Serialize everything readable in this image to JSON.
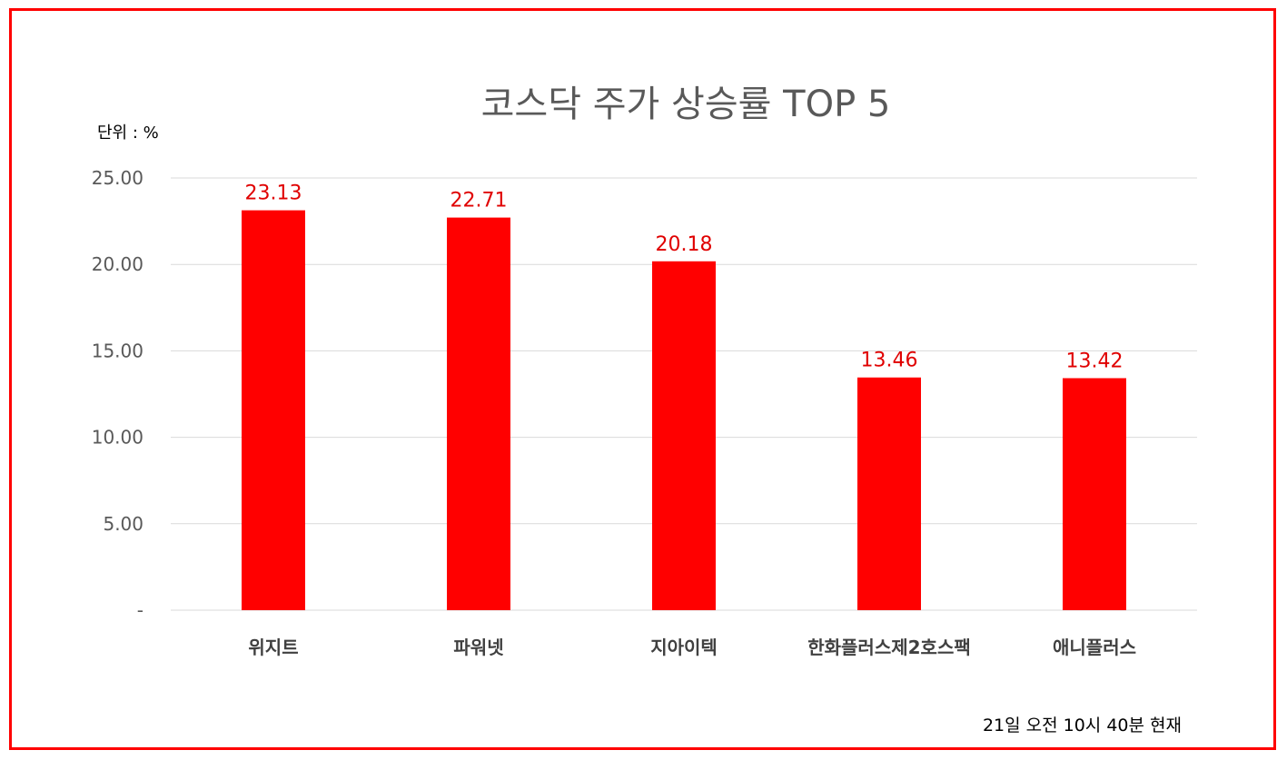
{
  "header": {
    "unit": "단위 : %"
  },
  "footer": {
    "timestamp": "21일  오전 10시 40분 현재"
  },
  "colors": {
    "bar": "#ff0000",
    "data_label": "#e00000",
    "frame": "#ff0000",
    "gridline": "#d9d9d9"
  },
  "chart_data": {
    "type": "bar",
    "title": "코스닥 주가 상승률 TOP 5",
    "categories": [
      "위지트",
      "파워넷",
      "지아이텍",
      "한화플러스제2호스팩",
      "애니플러스"
    ],
    "values": [
      23.13,
      22.71,
      20.18,
      13.46,
      13.42
    ],
    "data_labels": [
      "23.13",
      "22.71",
      "20.18",
      "13.46",
      "13.42"
    ],
    "ylim": [
      0,
      25
    ],
    "yticks": [
      0,
      5,
      10,
      15,
      20,
      25
    ],
    "ytick_labels": [
      "-",
      "5.00",
      "10.00",
      "15.00",
      "20.00",
      "25.00"
    ],
    "grid": true,
    "legend": "none"
  }
}
